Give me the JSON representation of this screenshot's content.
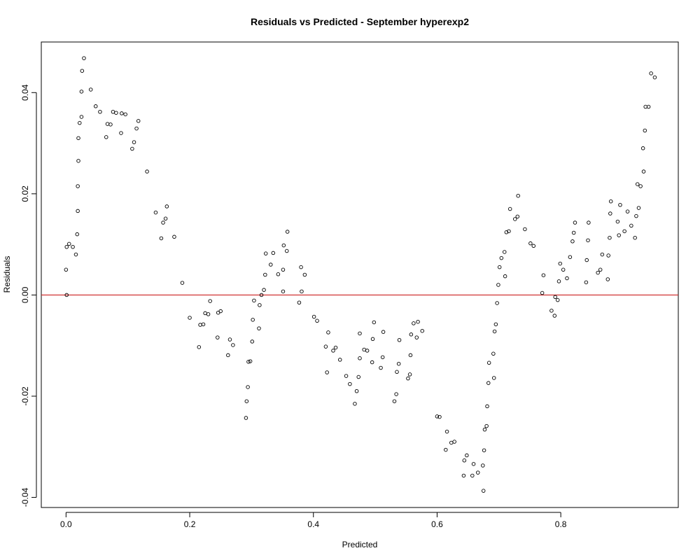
{
  "chart_data": {
    "type": "scatter",
    "title": "Residuals vs Predicted - September hyperexp2",
    "xlabel": "Predicted",
    "ylabel": "Residuals",
    "xlim": [
      -0.04,
      0.99
    ],
    "ylim": [
      -0.042,
      0.05
    ],
    "x_ticks": [
      0.0,
      0.2,
      0.4,
      0.6,
      0.8
    ],
    "x_tick_labels": [
      "0.0",
      "0.2",
      "0.4",
      "0.6",
      "0.8"
    ],
    "y_ticks": [
      -0.04,
      -0.02,
      0.0,
      0.02,
      0.04
    ],
    "y_tick_labels": [
      "-0.04",
      "-0.02",
      "0.00",
      "0.02",
      "0.04"
    ],
    "reference_line": {
      "y": 0.0,
      "color": "#cc2222"
    },
    "point_color": "#000000",
    "grid": false,
    "points": [
      [
        0.0,
        0.005
      ],
      [
        0.001,
        0.0
      ],
      [
        0.001,
        0.0095
      ],
      [
        0.005,
        0.0101
      ],
      [
        0.011,
        0.0095
      ],
      [
        0.016,
        0.008
      ],
      [
        0.018,
        0.012
      ],
      [
        0.019,
        0.0166
      ],
      [
        0.019,
        0.0215
      ],
      [
        0.02,
        0.0265
      ],
      [
        0.02,
        0.031
      ],
      [
        0.022,
        0.034
      ],
      [
        0.025,
        0.0352
      ],
      [
        0.025,
        0.0402
      ],
      [
        0.026,
        0.0443
      ],
      [
        0.029,
        0.0468
      ],
      [
        0.04,
        0.0406
      ],
      [
        0.048,
        0.0373
      ],
      [
        0.055,
        0.0362
      ],
      [
        0.065,
        0.0312
      ],
      [
        0.067,
        0.0338
      ],
      [
        0.072,
        0.0337
      ],
      [
        0.076,
        0.0362
      ],
      [
        0.081,
        0.036
      ],
      [
        0.089,
        0.032
      ],
      [
        0.09,
        0.0359
      ],
      [
        0.096,
        0.0357
      ],
      [
        0.107,
        0.0289
      ],
      [
        0.11,
        0.0302
      ],
      [
        0.114,
        0.0329
      ],
      [
        0.117,
        0.0344
      ],
      [
        0.131,
        0.0244
      ],
      [
        0.145,
        0.0163
      ],
      [
        0.154,
        0.0112
      ],
      [
        0.157,
        0.0143
      ],
      [
        0.161,
        0.0151
      ],
      [
        0.163,
        0.0175
      ],
      [
        0.175,
        0.0115
      ],
      [
        0.188,
        0.0024
      ],
      [
        0.2,
        -0.0045
      ],
      [
        0.215,
        -0.0103
      ],
      [
        0.217,
        -0.0059
      ],
      [
        0.222,
        -0.0058
      ],
      [
        0.225,
        -0.0036
      ],
      [
        0.23,
        -0.0038
      ],
      [
        0.233,
        -0.0012
      ],
      [
        0.245,
        -0.0084
      ],
      [
        0.246,
        -0.0035
      ],
      [
        0.25,
        -0.0032
      ],
      [
        0.262,
        -0.0119
      ],
      [
        0.265,
        -0.0088
      ],
      [
        0.27,
        -0.0099
      ],
      [
        0.291,
        -0.0243
      ],
      [
        0.292,
        -0.021
      ],
      [
        0.294,
        -0.0182
      ],
      [
        0.295,
        -0.0132
      ],
      [
        0.298,
        -0.0131
      ],
      [
        0.301,
        -0.0092
      ],
      [
        0.302,
        -0.0049
      ],
      [
        0.304,
        -0.0011
      ],
      [
        0.312,
        -0.0066
      ],
      [
        0.313,
        -0.002
      ],
      [
        0.316,
        0.0
      ],
      [
        0.32,
        0.001
      ],
      [
        0.322,
        0.004
      ],
      [
        0.323,
        0.0082
      ],
      [
        0.331,
        0.006
      ],
      [
        0.335,
        0.0083
      ],
      [
        0.343,
        0.0041
      ],
      [
        0.351,
        0.005
      ],
      [
        0.351,
        0.0007
      ],
      [
        0.352,
        0.0098
      ],
      [
        0.357,
        0.0087
      ],
      [
        0.358,
        0.0125
      ],
      [
        0.377,
        -0.0015
      ],
      [
        0.38,
        0.0055
      ],
      [
        0.381,
        0.0007
      ],
      [
        0.386,
        0.004
      ],
      [
        0.401,
        -0.0043
      ],
      [
        0.406,
        -0.0051
      ],
      [
        0.42,
        -0.0102
      ],
      [
        0.422,
        -0.0153
      ],
      [
        0.424,
        -0.0074
      ],
      [
        0.432,
        -0.011
      ],
      [
        0.436,
        -0.0104
      ],
      [
        0.443,
        -0.0128
      ],
      [
        0.453,
        -0.016
      ],
      [
        0.459,
        -0.0176
      ],
      [
        0.467,
        -0.0215
      ],
      [
        0.47,
        -0.019
      ],
      [
        0.473,
        -0.0162
      ],
      [
        0.475,
        -0.0076
      ],
      [
        0.475,
        -0.0125
      ],
      [
        0.482,
        -0.0108
      ],
      [
        0.487,
        -0.011
      ],
      [
        0.495,
        -0.0133
      ],
      [
        0.496,
        -0.0087
      ],
      [
        0.498,
        -0.0054
      ],
      [
        0.509,
        -0.0144
      ],
      [
        0.512,
        -0.0123
      ],
      [
        0.513,
        -0.0073
      ],
      [
        0.531,
        -0.021
      ],
      [
        0.534,
        -0.0196
      ],
      [
        0.535,
        -0.0152
      ],
      [
        0.538,
        -0.0136
      ],
      [
        0.539,
        -0.0089
      ],
      [
        0.553,
        -0.0165
      ],
      [
        0.556,
        -0.0157
      ],
      [
        0.557,
        -0.0119
      ],
      [
        0.558,
        -0.0078
      ],
      [
        0.562,
        -0.0056
      ],
      [
        0.567,
        -0.0084
      ],
      [
        0.569,
        -0.0053
      ],
      [
        0.576,
        -0.0071
      ],
      [
        0.6,
        -0.024
      ],
      [
        0.604,
        -0.0241
      ],
      [
        0.614,
        -0.0306
      ],
      [
        0.616,
        -0.027
      ],
      [
        0.623,
        -0.0292
      ],
      [
        0.628,
        -0.029
      ],
      [
        0.643,
        -0.0357
      ],
      [
        0.644,
        -0.0327
      ],
      [
        0.648,
        -0.0317
      ],
      [
        0.657,
        -0.0357
      ],
      [
        0.659,
        -0.0334
      ],
      [
        0.666,
        -0.0351
      ],
      [
        0.674,
        -0.0337
      ],
      [
        0.675,
        -0.0387
      ],
      [
        0.676,
        -0.0307
      ],
      [
        0.677,
        -0.0266
      ],
      [
        0.68,
        -0.0259
      ],
      [
        0.681,
        -0.022
      ],
      [
        0.683,
        -0.0174
      ],
      [
        0.684,
        -0.0134
      ],
      [
        0.691,
        -0.0116
      ],
      [
        0.692,
        -0.0164
      ],
      [
        0.693,
        -0.0072
      ],
      [
        0.695,
        -0.0058
      ],
      [
        0.697,
        -0.0016
      ],
      [
        0.699,
        0.002
      ],
      [
        0.701,
        0.0055
      ],
      [
        0.704,
        0.0073
      ],
      [
        0.709,
        0.0085
      ],
      [
        0.71,
        0.0037
      ],
      [
        0.712,
        0.0124
      ],
      [
        0.716,
        0.0126
      ],
      [
        0.718,
        0.017
      ],
      [
        0.726,
        0.015
      ],
      [
        0.73,
        0.0155
      ],
      [
        0.731,
        0.0196
      ],
      [
        0.742,
        0.013
      ],
      [
        0.751,
        0.0102
      ],
      [
        0.756,
        0.0097
      ],
      [
        0.77,
        0.0004
      ],
      [
        0.772,
        0.0039
      ],
      [
        0.785,
        -0.0031
      ],
      [
        0.79,
        -0.0041
      ],
      [
        0.791,
        -0.0004
      ],
      [
        0.795,
        -0.001
      ],
      [
        0.797,
        0.0027
      ],
      [
        0.799,
        0.0062
      ],
      [
        0.804,
        0.005
      ],
      [
        0.81,
        0.0033
      ],
      [
        0.815,
        0.0075
      ],
      [
        0.819,
        0.0106
      ],
      [
        0.821,
        0.0123
      ],
      [
        0.823,
        0.0143
      ],
      [
        0.841,
        0.0025
      ],
      [
        0.842,
        0.0069
      ],
      [
        0.844,
        0.0108
      ],
      [
        0.845,
        0.0143
      ],
      [
        0.86,
        0.0044
      ],
      [
        0.864,
        0.005
      ],
      [
        0.867,
        0.008
      ],
      [
        0.876,
        0.0031
      ],
      [
        0.877,
        0.0078
      ],
      [
        0.879,
        0.0113
      ],
      [
        0.88,
        0.0161
      ],
      [
        0.881,
        0.0185
      ],
      [
        0.892,
        0.0145
      ],
      [
        0.894,
        0.0118
      ],
      [
        0.896,
        0.0178
      ],
      [
        0.903,
        0.0126
      ],
      [
        0.908,
        0.0165
      ],
      [
        0.914,
        0.0137
      ],
      [
        0.92,
        0.0113
      ],
      [
        0.922,
        0.0156
      ],
      [
        0.924,
        0.0219
      ],
      [
        0.926,
        0.0172
      ],
      [
        0.929,
        0.0215
      ],
      [
        0.933,
        0.029
      ],
      [
        0.934,
        0.0244
      ],
      [
        0.936,
        0.0325
      ],
      [
        0.937,
        0.0372
      ],
      [
        0.942,
        0.0372
      ],
      [
        0.946,
        0.0438
      ],
      [
        0.952,
        0.043
      ]
    ]
  }
}
